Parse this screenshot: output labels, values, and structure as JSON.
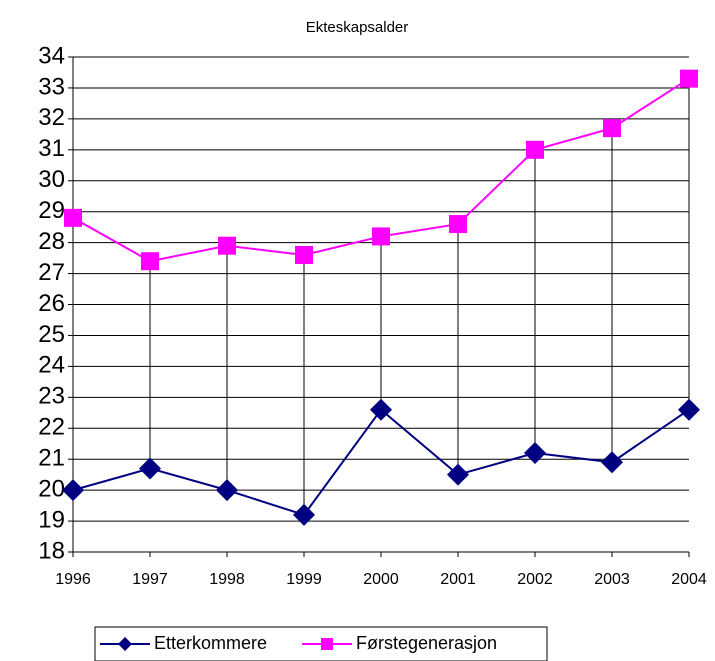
{
  "chart_data": {
    "type": "line",
    "title": "Ekteskapsalder",
    "categories": [
      "1996",
      "1997",
      "1998",
      "1999",
      "2000",
      "2001",
      "2002",
      "2003",
      "2004"
    ],
    "series": [
      {
        "name": "Etterkommere",
        "color": "#000080",
        "marker": "diamond",
        "values": [
          20.0,
          20.7,
          20.0,
          19.2,
          22.6,
          20.5,
          21.2,
          20.9,
          22.6
        ]
      },
      {
        "name": "Førstegenerasjon",
        "color": "#ff00ff",
        "marker": "square",
        "values": [
          28.8,
          27.4,
          27.9,
          27.6,
          28.2,
          28.6,
          31.0,
          31.7,
          33.3
        ]
      }
    ],
    "ylim": [
      18,
      34
    ],
    "yticks": [
      18,
      19,
      20,
      21,
      22,
      23,
      24,
      25,
      26,
      27,
      28,
      29,
      30,
      31,
      32,
      33,
      34
    ],
    "grid": true,
    "high_low_lines": true,
    "legend": "bottom"
  }
}
